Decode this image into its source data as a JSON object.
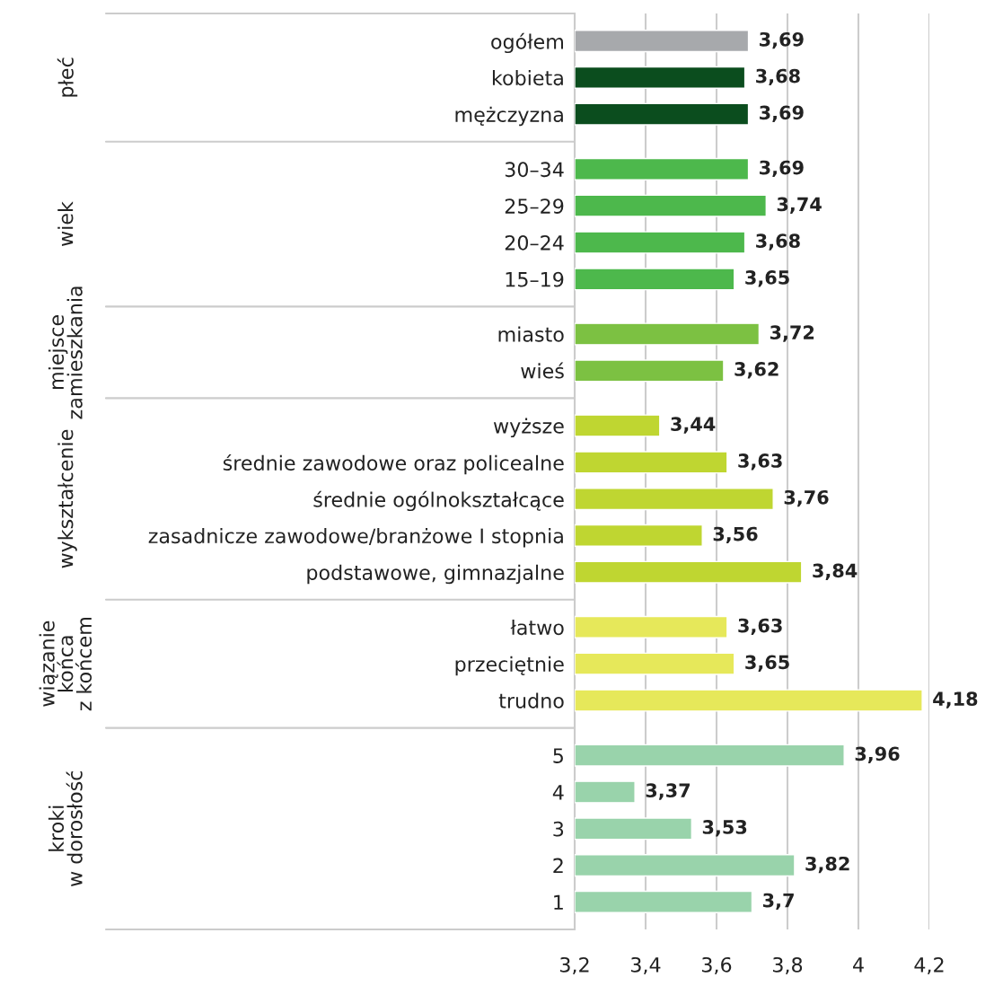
{
  "chart_data": {
    "type": "bar",
    "orientation": "horizontal",
    "categories": [
      "ogółem",
      "kobieta",
      "mężczyzna",
      "30–34",
      "25–29",
      "20–24",
      "15–19",
      "miasto",
      "wieś",
      "wyższe",
      "średnie zawodowe oraz policealne",
      "średnie ogólnokształcące",
      "zasadnicze zawodowe/branżowe I stopnia",
      "podstawowe, gimnazjalne",
      "łatwo",
      "przeciętnie",
      "trudno",
      "5",
      "4",
      "3",
      "2",
      "1"
    ],
    "values": [
      3.69,
      3.68,
      3.69,
      3.69,
      3.74,
      3.68,
      3.65,
      3.72,
      3.62,
      3.44,
      3.63,
      3.76,
      3.56,
      3.84,
      3.63,
      3.65,
      4.18,
      3.96,
      3.37,
      3.53,
      3.82,
      3.7
    ],
    "value_labels": [
      "3,69",
      "3,68",
      "3,69",
      "3,69",
      "3,74",
      "3,68",
      "3,65",
      "3,72",
      "3,62",
      "3,44",
      "3,63",
      "3,76",
      "3,56",
      "3,84",
      "3,63",
      "3,65",
      "4,18",
      "3,96",
      "3,37",
      "3,53",
      "3,82",
      "3,7"
    ],
    "colors": [
      "#a7a9ac",
      "#0b4d1e",
      "#0b4d1e",
      "#4db84c",
      "#4db84c",
      "#4db84c",
      "#4db84c",
      "#7cc142",
      "#7cc142",
      "#bfd631",
      "#bfd631",
      "#bfd631",
      "#bfd631",
      "#bfd631",
      "#e6e85a",
      "#e6e85a",
      "#e6e85a",
      "#99d3ab",
      "#99d3ab",
      "#99d3ab",
      "#99d3ab",
      "#99d3ab"
    ],
    "xlim": [
      3.2,
      4.2
    ],
    "xticks": [
      {
        "value": 3.2,
        "label": "3,2"
      },
      {
        "value": 3.4,
        "label": "3,4"
      },
      {
        "value": 3.6,
        "label": "3,6"
      },
      {
        "value": 3.8,
        "label": "3,8"
      },
      {
        "value": 4,
        "label": "4"
      },
      {
        "value": 4.2,
        "label": "4,2"
      }
    ],
    "grid": "x",
    "annotations": [
      "płeć",
      "wiek",
      "miejsce\nzamieszkania",
      "wykształcenie",
      "wiązanie\nkońca\nz końcem",
      "kroki\nw dorosłość"
    ]
  }
}
